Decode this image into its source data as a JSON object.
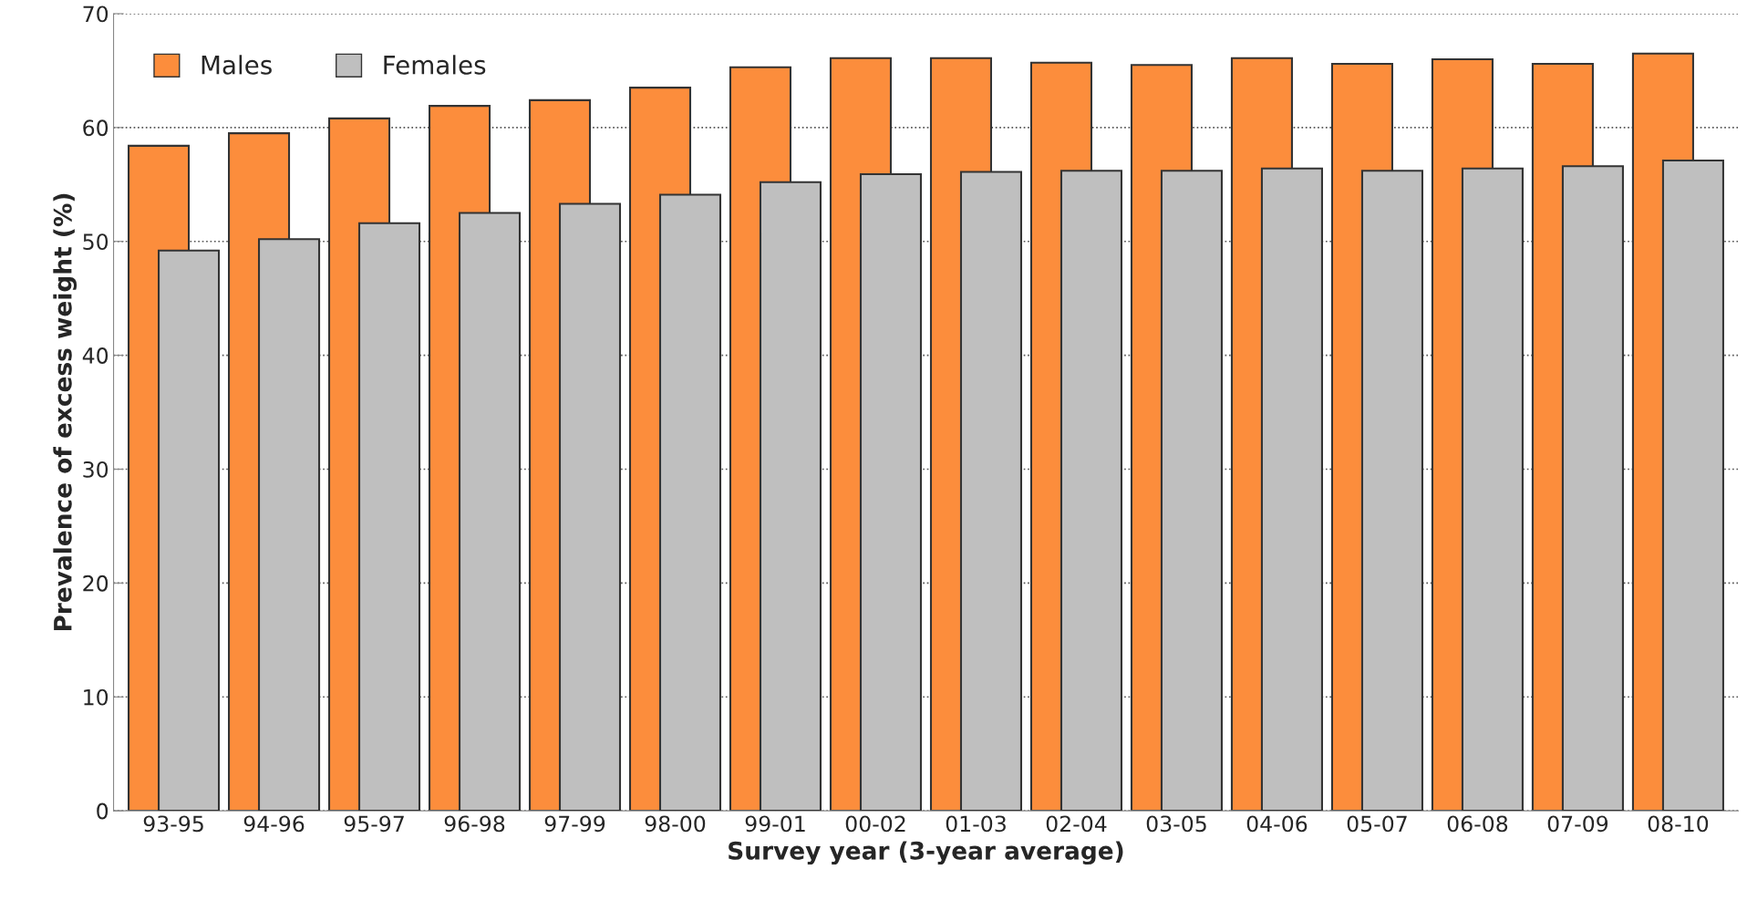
{
  "chart_data": {
    "type": "bar",
    "xlabel": "Survey year (3-year average)",
    "ylabel": "Prevalence of excess weight (%)",
    "categories": [
      "93-95",
      "94-96",
      "95-97",
      "96-98",
      "97-99",
      "98-00",
      "99-01",
      "00-02",
      "01-03",
      "02-04",
      "03-05",
      "04-06",
      "05-07",
      "06-08",
      "07-09",
      "08-10"
    ],
    "series": [
      {
        "name": "Males",
        "color": "#fc8d3c",
        "values": [
          58.4,
          59.5,
          60.8,
          61.9,
          62.4,
          63.5,
          65.3,
          66.1,
          66.1,
          65.7,
          65.5,
          66.1,
          65.6,
          66.0,
          65.6,
          66.5
        ]
      },
      {
        "name": "Females",
        "color": "#bfbfbf",
        "values": [
          49.2,
          50.2,
          51.6,
          52.5,
          53.3,
          54.1,
          55.2,
          55.9,
          56.1,
          56.2,
          56.2,
          56.4,
          56.2,
          56.4,
          56.6,
          57.1
        ]
      }
    ],
    "ylim": [
      0,
      70
    ],
    "yticks": [
      0,
      10,
      20,
      30,
      40,
      50,
      60,
      70
    ],
    "grid": "y",
    "legend": "top left"
  }
}
